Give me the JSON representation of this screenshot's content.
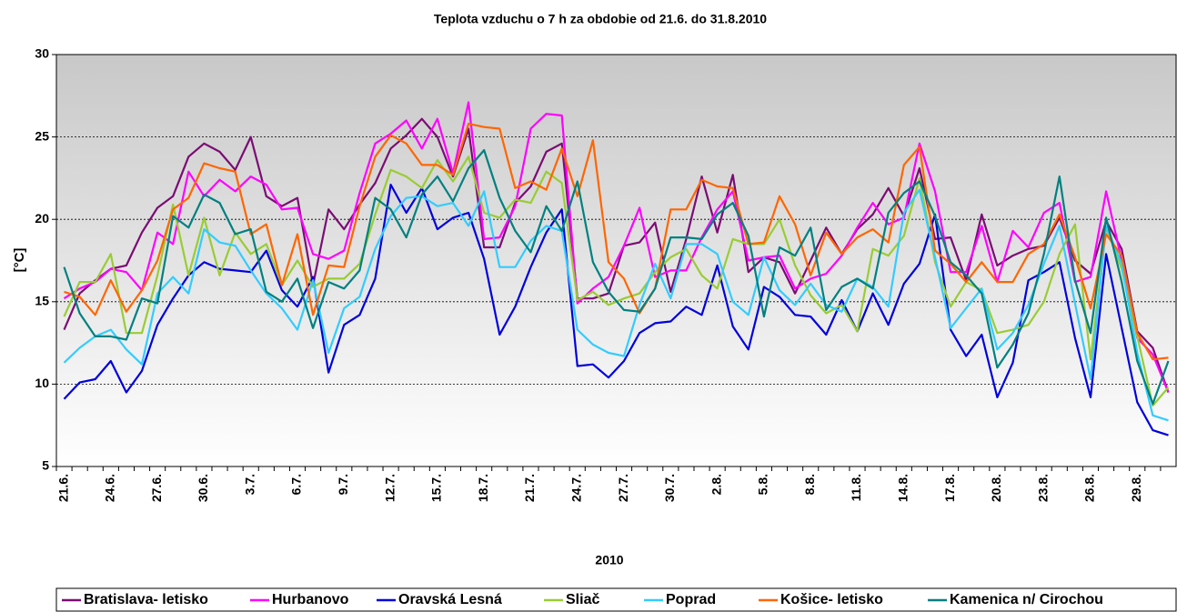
{
  "chart_data": {
    "type": "line",
    "title": "Teplota vzduchu o 7 h za obdobie od 21.6. do 31.8.2010",
    "xlabel": "2010",
    "ylabel": "[°C]",
    "categories": [
      "21.6.",
      null,
      null,
      "24.6.",
      null,
      null,
      "27.6.",
      null,
      null,
      "30.6.",
      null,
      null,
      "3.7.",
      null,
      null,
      "6.7.",
      null,
      null,
      "9.7.",
      null,
      null,
      "12.7.",
      null,
      null,
      "15.7.",
      null,
      null,
      "18.7.",
      null,
      null,
      "21.7.",
      null,
      null,
      "24.7.",
      null,
      null,
      "27.7.",
      null,
      null,
      "30.7.",
      null,
      null,
      "2.8.",
      null,
      null,
      "5.8.",
      null,
      null,
      "8.8.",
      null,
      null,
      "11.8.",
      null,
      null,
      "14.8.",
      null,
      null,
      "17.8.",
      null,
      null,
      "20.8.",
      null,
      null,
      "23.8.",
      null,
      null,
      "26.8.",
      null,
      null,
      "29.8.",
      null,
      null
    ],
    "ylim": [
      5,
      30
    ],
    "yticks": [
      5,
      10,
      15,
      20,
      25,
      30
    ],
    "grid": true,
    "series": [
      {
        "name": "Bratislava- letisko",
        "color": "#7b0c74",
        "values": [
          13.3,
          15.5,
          16.3,
          17,
          17.2,
          19.2,
          20.7,
          21.4,
          23.8,
          24.6,
          24.1,
          23,
          25,
          21.4,
          20.8,
          21.3,
          16,
          20.6,
          19.4,
          20.9,
          22.2,
          24.3,
          25.1,
          26.1,
          25,
          22.6,
          25.5,
          18.3,
          18.3,
          21,
          22,
          24.1,
          24.6,
          15.2,
          15.2,
          15.5,
          18.4,
          18.6,
          19.8,
          15.6,
          18.8,
          22.6,
          19.2,
          22.7,
          16.8,
          17.7,
          17.4,
          15.5,
          17.5,
          19.5,
          17.9,
          19.4,
          20.3,
          21.9,
          20.2,
          23.1,
          18.8,
          18.9,
          16.3,
          20.3,
          17.2,
          17.8,
          18.2,
          18.4,
          20.1,
          17.5,
          16.7,
          19.9,
          18.2,
          13.2,
          12.2,
          9.5
        ]
      },
      {
        "name": "Hurbanovo",
        "color": "#ff00ff",
        "values": [
          15.2,
          15.8,
          16.2,
          17,
          16.8,
          15.7,
          19.2,
          18.5,
          22.9,
          21.4,
          22.4,
          21.7,
          22.6,
          22.1,
          20.6,
          20.7,
          17.9,
          17.6,
          18.1,
          21.6,
          24.6,
          25.2,
          26,
          24.3,
          26.1,
          22.8,
          27.1,
          18.8,
          18.9,
          20.8,
          25.5,
          26.4,
          26.3,
          14.9,
          15.8,
          16.5,
          18.4,
          20.7,
          16.5,
          16.9,
          16.9,
          18.9,
          20.6,
          21.7,
          17.5,
          17.7,
          17.8,
          15.8,
          16.4,
          16.7,
          17.8,
          19.5,
          21,
          19.7,
          20.1,
          24.6,
          21.7,
          16.8,
          16.8,
          19.6,
          16.2,
          19.3,
          18.3,
          20.4,
          21,
          16.2,
          16.5,
          21.7,
          17.5,
          12.8,
          11.8,
          9.5
        ]
      },
      {
        "name": "Oravská Lesná",
        "color": "#0000dd",
        "values": [
          9.1,
          10.1,
          10.3,
          11.4,
          9.5,
          10.8,
          13.6,
          15.2,
          16.6,
          17.4,
          17,
          16.9,
          16.8,
          18.1,
          15.7,
          14.7,
          16.5,
          10.7,
          13.6,
          14.2,
          16.4,
          22.1,
          20.4,
          21.9,
          19.4,
          20.1,
          20.4,
          17.6,
          13,
          14.7,
          17.1,
          19.2,
          20.6,
          11.1,
          11.2,
          10.4,
          11.4,
          13.1,
          13.7,
          13.8,
          14.7,
          14.2,
          17.2,
          13.5,
          12.1,
          15.9,
          15.3,
          14.2,
          14.1,
          13,
          15.1,
          13.2,
          15.5,
          13.6,
          16.1,
          17.3,
          20.3,
          13.3,
          11.7,
          13,
          9.2,
          11.3,
          16.3,
          16.8,
          17.4,
          12.8,
          9.2,
          17.9,
          13.4,
          8.9,
          7.2,
          6.9
        ]
      },
      {
        "name": "Sliač",
        "color": "#99cc33",
        "values": [
          14.1,
          16.2,
          16.2,
          17.9,
          13.1,
          13.1,
          16.6,
          20.9,
          16.6,
          20.1,
          16.6,
          19.2,
          17.9,
          18.5,
          16,
          17.5,
          15.9,
          16.4,
          16.4,
          17.3,
          20.3,
          23,
          22.6,
          21.9,
          23.6,
          22.3,
          23.8,
          20.4,
          20.1,
          21.2,
          21,
          22.9,
          22.2,
          15.1,
          15.6,
          14.8,
          15.2,
          15.5,
          16.8,
          17.7,
          18.2,
          16.6,
          15.8,
          18.8,
          18.5,
          18.5,
          20,
          17.2,
          15.4,
          14.3,
          14.8,
          13.2,
          18.2,
          17.8,
          19,
          22.5,
          17.4,
          14.7,
          16.2,
          15.7,
          13.1,
          13.3,
          13.6,
          15,
          17.9,
          19.7,
          11.5,
          19.5,
          17,
          12.9,
          8.7,
          9.8
        ]
      },
      {
        "name": "Poprad",
        "color": "#33ccff",
        "values": [
          11.3,
          12.2,
          12.9,
          13.3,
          12.1,
          11.2,
          15.5,
          16.5,
          15.5,
          19.4,
          18.6,
          18.4,
          16.9,
          15.5,
          14.6,
          13.3,
          16.3,
          11.9,
          14.6,
          15.3,
          18.2,
          20.2,
          21.3,
          21.4,
          20.8,
          21,
          19.6,
          21.7,
          17.1,
          17.1,
          18.7,
          19.6,
          19.3,
          13.3,
          12.4,
          11.9,
          11.7,
          14.8,
          17.3,
          15.2,
          18.5,
          18.5,
          17.9,
          15,
          14.2,
          17.7,
          15.7,
          14.8,
          16.1,
          14.8,
          14.4,
          16.4,
          15.9,
          14.7,
          20.4,
          21.8,
          17.7,
          13.4,
          14.6,
          15.8,
          12.1,
          13.1,
          14.8,
          17.3,
          19.6,
          14.9,
          10.3,
          19.6,
          17.3,
          11.9,
          8.1,
          7.8
        ]
      },
      {
        "name": "Košice- letisko",
        "color": "#ff6600",
        "values": [
          15.6,
          15.3,
          14.2,
          16.3,
          14.4,
          15.7,
          17.5,
          20.6,
          21.3,
          23.4,
          23.1,
          22.9,
          19.1,
          19.7,
          16,
          19.1,
          14.2,
          17.2,
          17.1,
          20.8,
          23.8,
          25.1,
          24.6,
          23.3,
          23.3,
          22.7,
          25.8,
          25.6,
          25.5,
          21.9,
          22.3,
          21.8,
          24.3,
          21.4,
          24.8,
          17.4,
          16.4,
          14.3,
          15.8,
          20.6,
          20.6,
          22.4,
          22,
          21.9,
          18.5,
          18.6,
          21.4,
          19.7,
          16.6,
          19.2,
          17.9,
          18.9,
          19.4,
          18.6,
          23.3,
          24.4,
          18.1,
          17.3,
          16.2,
          17.4,
          16.2,
          16.2,
          17.9,
          18.5,
          20.3,
          17.7,
          14.6,
          19.1,
          17.8,
          13.1,
          11.5,
          11.6
        ]
      },
      {
        "name": "Kamenica n/ Cirochou",
        "color": "#008080",
        "values": [
          17.1,
          14.3,
          12.9,
          12.9,
          12.7,
          15.2,
          14.9,
          20.2,
          19.5,
          21.5,
          21,
          19.1,
          19.4,
          15.6,
          15,
          16.4,
          13.4,
          16.2,
          15.8,
          16.9,
          21.3,
          20.6,
          18.9,
          21.5,
          22.6,
          21.1,
          23.1,
          24.2,
          21.3,
          19.3,
          18,
          20.8,
          19.3,
          22.3,
          17.4,
          15.6,
          14.5,
          14.4,
          15.8,
          18.9,
          18.9,
          18.8,
          20.3,
          21,
          19,
          14.1,
          18.3,
          17.8,
          19.5,
          14.5,
          15.9,
          16.4,
          15.8,
          20.4,
          21.6,
          22.3,
          20.2,
          17.4,
          16.6,
          15.5,
          11,
          12.4,
          14.3,
          17.9,
          22.6,
          16.3,
          13.1,
          20.1,
          16.2,
          11.4,
          8.8,
          11.4
        ]
      }
    ]
  }
}
